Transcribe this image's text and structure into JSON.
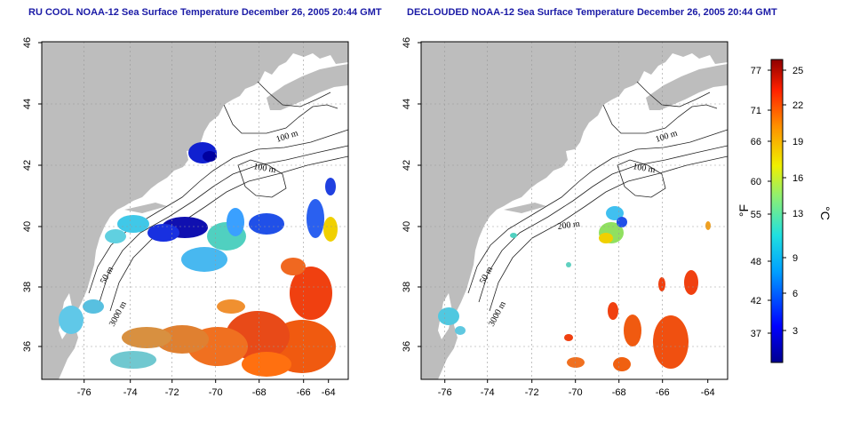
{
  "titles": {
    "left": "RU COOL NOAA-12 Sea Surface Temperature December 26, 2005 20:44 GMT",
    "right": "DECLOUDED NOAA-12 Sea Surface Temperature December 26, 2005 20:44 GMT"
  },
  "axes": {
    "x_ticks": [
      "-76",
      "-74",
      "-72",
      "-70",
      "-68",
      "-66",
      "-64"
    ],
    "y_ticks": [
      "36",
      "38",
      "40",
      "42",
      "44",
      "46"
    ]
  },
  "contour_labels": {
    "left": [
      "100 m",
      "100 m",
      "50 m",
      "3000 m"
    ],
    "right": [
      "100 m",
      "100 m",
      "200 m",
      "50 m",
      "3000 m"
    ]
  },
  "colorbar": {
    "fahrenheit_unit": "°F",
    "celsius_unit": "°C",
    "fahrenheit_ticks": [
      "77",
      "71",
      "66",
      "60",
      "55",
      "48",
      "42",
      "37"
    ],
    "celsius_ticks": [
      "25",
      "22",
      "19",
      "16",
      "13",
      "9",
      "6",
      "3"
    ]
  },
  "colors": {
    "land": "#bdbdbd",
    "title": "#1a1aa6",
    "cold": "#1010a0",
    "warm": "#e03a10"
  }
}
